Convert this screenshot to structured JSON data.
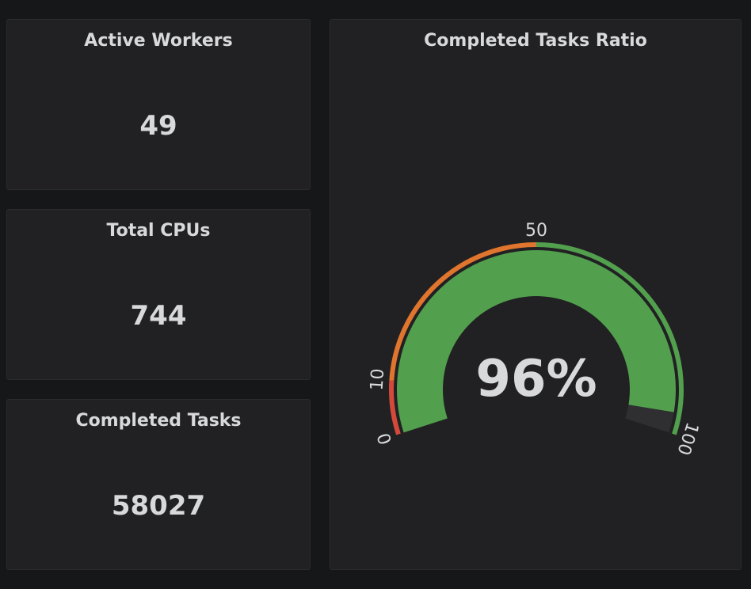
{
  "stats": [
    {
      "title": "Active Workers",
      "value": "49"
    },
    {
      "title": "Total CPUs",
      "value": "744"
    },
    {
      "title": "Completed Tasks",
      "value": "58027"
    }
  ],
  "gauge": {
    "title": "Completed Tasks Ratio",
    "value": 96,
    "value_text": "96%",
    "min": 0,
    "max": 100,
    "thresholds": [
      {
        "from": 0,
        "to": 10,
        "color": "#d44a3a"
      },
      {
        "from": 10,
        "to": 50,
        "color": "#e0752d"
      },
      {
        "from": 50,
        "to": 100,
        "color": "#52a04d"
      }
    ],
    "tick_labels": [
      "0",
      "10",
      "50",
      "100"
    ],
    "fill_color": "#52a04d",
    "track_color": "#2f2f32"
  },
  "colors": {
    "background": "#161719",
    "panel": "#212124",
    "text": "#d8d9da"
  }
}
